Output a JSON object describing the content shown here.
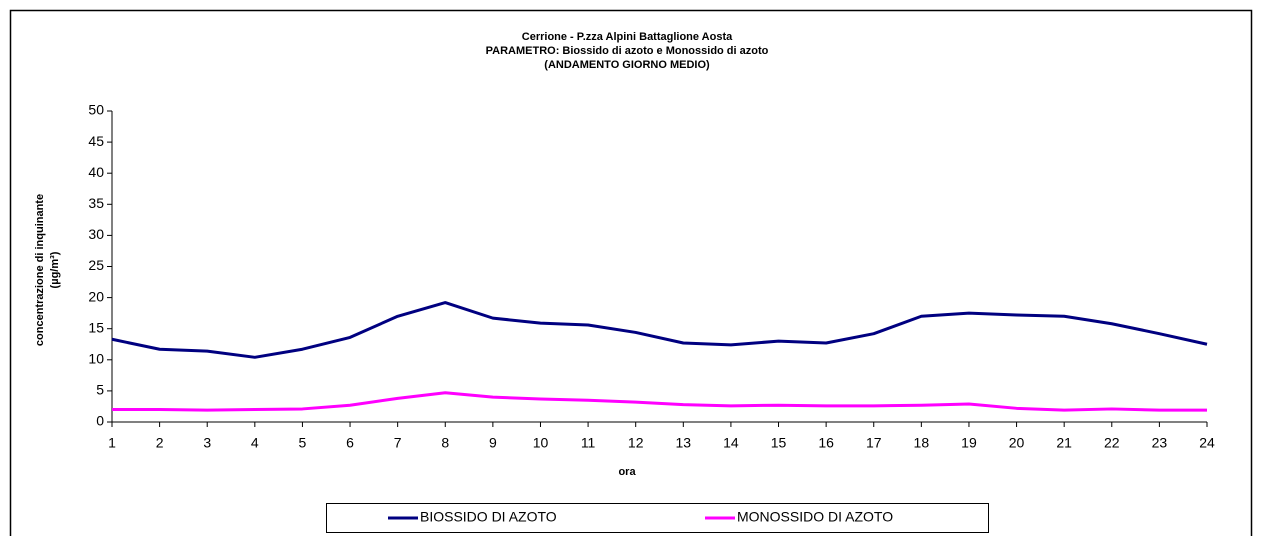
{
  "chart_data": {
    "type": "line",
    "title": [
      "Cerrione - P.zza Alpini Battaglione Aosta",
      "PARAMETRO: Biossido di azoto e Monossido di azoto",
      "(ANDAMENTO GIORNO MEDIO)"
    ],
    "x_label": "ora",
    "y_label": [
      "concentrazione di inquinante",
      "(µg/m³)"
    ],
    "categories": [
      "1",
      "2",
      "3",
      "4",
      "5",
      "6",
      "7",
      "8",
      "9",
      "10",
      "11",
      "12",
      "13",
      "14",
      "15",
      "16",
      "17",
      "18",
      "19",
      "20",
      "21",
      "22",
      "23",
      "24"
    ],
    "series": [
      {
        "name": "BIOSSIDO DI AZOTO",
        "color": "#000080",
        "values": [
          13.3,
          11.7,
          11.4,
          10.4,
          11.7,
          13.6,
          17.0,
          19.2,
          16.7,
          15.9,
          15.6,
          14.4,
          12.7,
          12.4,
          13.0,
          12.7,
          14.2,
          17.0,
          17.5,
          17.2,
          17.0,
          15.8,
          14.2,
          12.5
        ]
      },
      {
        "name": "MONOSSIDO DI AZOTO",
        "color": "#ff00ff",
        "values": [
          2.0,
          2.0,
          1.9,
          2.0,
          2.1,
          2.7,
          3.8,
          4.7,
          4.0,
          3.7,
          3.5,
          3.2,
          2.8,
          2.6,
          2.7,
          2.6,
          2.6,
          2.7,
          2.9,
          2.2,
          1.9,
          2.1,
          1.9,
          1.9
        ]
      }
    ],
    "ylim": [
      0,
      50
    ],
    "yticks": [
      0,
      5,
      10,
      15,
      20,
      25,
      30,
      35,
      40,
      45,
      50
    ],
    "grid": false,
    "legend": "bottom"
  }
}
